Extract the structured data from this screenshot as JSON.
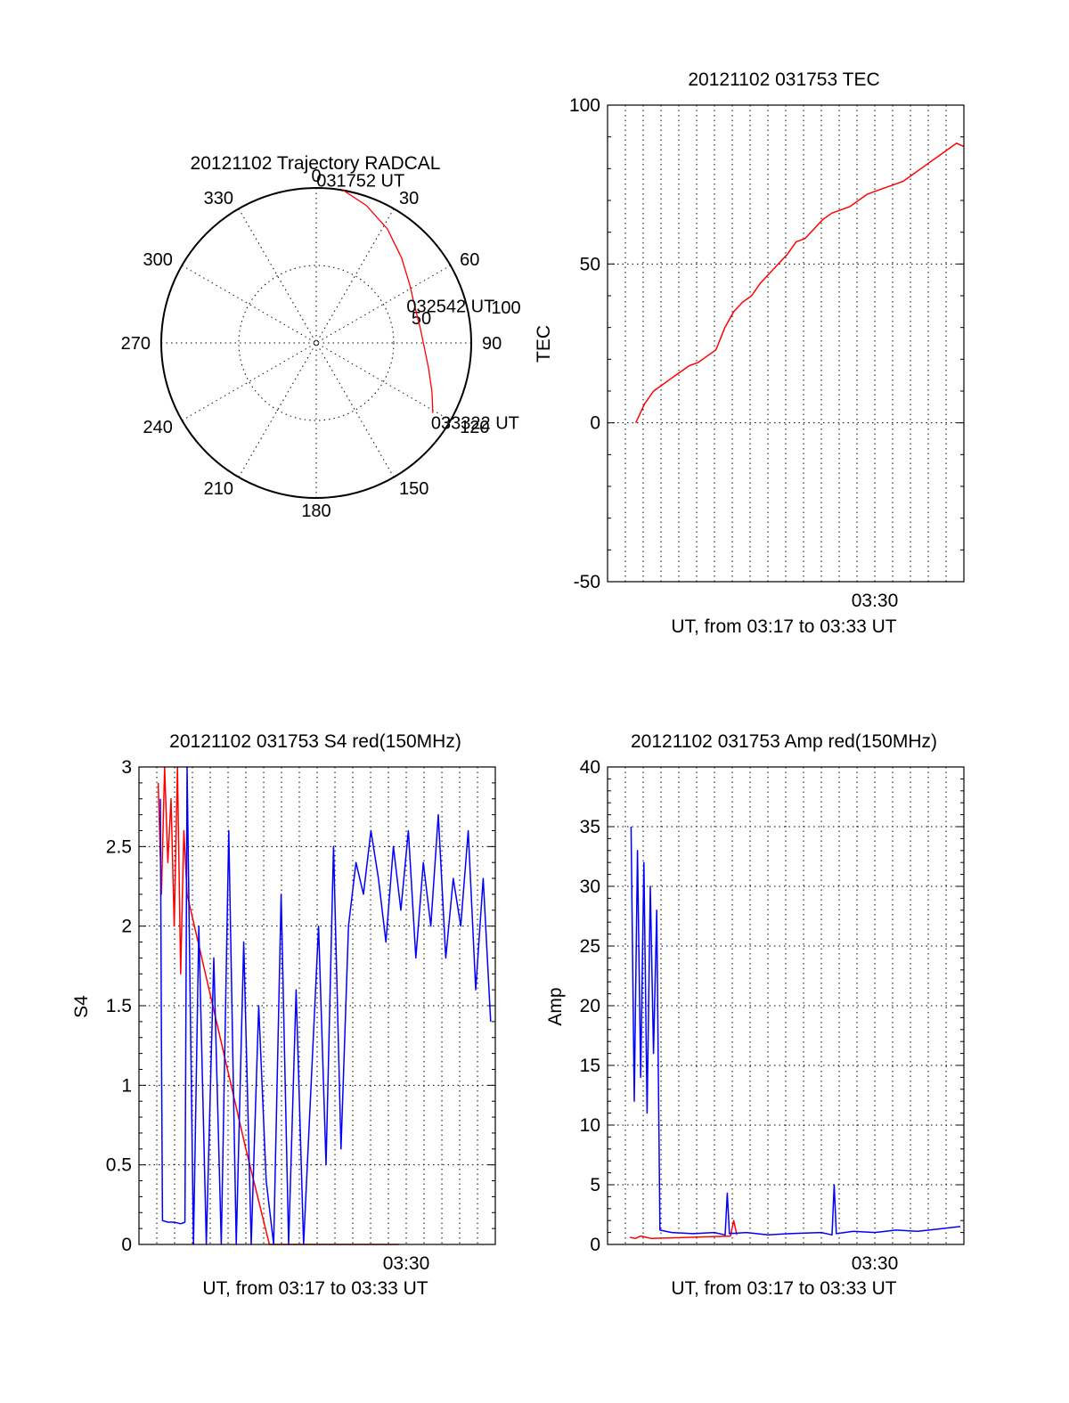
{
  "chart_data": [
    {
      "id": "trajectory",
      "type": "polar",
      "title": "20121102 Trajectory RADCAL",
      "azimuth_labels": [
        "0",
        "30",
        "60",
        "90",
        "120",
        "150",
        "180",
        "210",
        "240",
        "270",
        "300",
        "330"
      ],
      "radius_labels": [
        "50",
        "100"
      ],
      "grid": true,
      "series": [
        {
          "color": "#ff0000",
          "points": [
            {
              "az": 10,
              "zen": 90
            },
            {
              "az": 20,
              "zen": 85
            },
            {
              "az": 32,
              "zen": 78
            },
            {
              "az": 45,
              "zen": 70
            },
            {
              "az": 58,
              "zen": 64
            },
            {
              "az": 70,
              "zen": 61
            },
            {
              "az": 82,
              "zen": 61
            },
            {
              "az": 93,
              "zen": 63
            },
            {
              "az": 103,
              "zen": 67
            },
            {
              "az": 113,
              "zen": 73
            },
            {
              "az": 121,
              "zen": 79
            }
          ]
        }
      ],
      "annotations": [
        {
          "text": "031752 UT",
          "az": 10,
          "zen": 90
        },
        {
          "text": "032542 UT",
          "az": 74,
          "zen": 61
        },
        {
          "text": "033322 UT",
          "az": 121,
          "zen": 79
        }
      ]
    },
    {
      "id": "tec",
      "type": "line",
      "title": "20121102 031753 TEC",
      "xlabel": "UT, from 03:17 to 03:33 UT",
      "ylabel": "TEC",
      "xlim": [
        3.25,
        3.5833
      ],
      "ylim": [
        -50,
        100
      ],
      "yticks": [
        "-50",
        "0",
        "50",
        "100"
      ],
      "xtick_labels": [
        {
          "x": 3.5,
          "label": "03:30"
        }
      ],
      "grid": true,
      "series": [
        {
          "color": "#ff0000",
          "x": [
            3.2764,
            3.2847,
            3.2931,
            3.3014,
            3.3097,
            3.3181,
            3.3264,
            3.3347,
            3.3431,
            3.3514,
            3.3597,
            3.3681,
            3.3764,
            3.3847,
            3.3931,
            3.4014,
            3.4097,
            3.4181,
            3.4264,
            3.4347,
            3.4431,
            3.4514,
            3.4597,
            3.4681,
            3.4764,
            3.4847,
            3.4931,
            3.5014,
            3.5097,
            3.5181,
            3.5264,
            3.5347,
            3.5431,
            3.5514,
            3.5597,
            3.5681,
            3.5764,
            3.5833
          ],
          "y": [
            0,
            6,
            10,
            12,
            14,
            16,
            18,
            19,
            21,
            23,
            30,
            35,
            38,
            40,
            44,
            47,
            50,
            53,
            57,
            58,
            61,
            64,
            66,
            67,
            68,
            70,
            72,
            73,
            74,
            75,
            76,
            78,
            80,
            82,
            84,
            86,
            88,
            87
          ]
        }
      ]
    },
    {
      "id": "s4",
      "type": "line",
      "title": "20121102 031753 S4 red(150MHz)",
      "xlabel": "UT, from 03:17 to 03:33 UT",
      "ylabel": "S4",
      "xlim": [
        3.25,
        3.5833
      ],
      "ylim": [
        0,
        3
      ],
      "yticks": [
        "0",
        "0.5",
        "1",
        "1.5",
        "2",
        "2.5",
        "3"
      ],
      "xtick_labels": [
        {
          "x": 3.5,
          "label": "03:30"
        }
      ],
      "grid": true,
      "series": [
        {
          "color": "#ff0000",
          "x": [
            3.268,
            3.271,
            3.274,
            3.277,
            3.28,
            3.283,
            3.286,
            3.289,
            3.292,
            3.295,
            3.35,
            3.372,
            3.385,
            3.391,
            3.397,
            3.403,
            3.409,
            3.415,
            3.421,
            3.427,
            3.433,
            3.439,
            3.445,
            3.451,
            3.457,
            3.463,
            3.469,
            3.475,
            3.481,
            3.487,
            3.493
          ],
          "y": [
            2.9,
            2.2,
            3.0,
            2.4,
            2.8,
            2.0,
            3.0,
            1.7,
            2.6,
            2.2,
            0.6,
            0.0,
            0.0,
            0.0,
            0.0,
            0.0,
            0.0,
            0.0,
            0.0,
            0.0,
            0.0,
            0.0,
            0.0,
            0.0,
            0.0,
            0.0,
            0.0,
            0.0,
            0.0,
            0.0,
            0.0
          ]
        },
        {
          "color": "#0000ff",
          "x": [
            3.27,
            3.271,
            3.272,
            3.277,
            3.283,
            3.289,
            3.293,
            3.295,
            3.301,
            3.306,
            3.313,
            3.32,
            3.327,
            3.334,
            3.341,
            3.348,
            3.355,
            3.362,
            3.369,
            3.376,
            3.383,
            3.39,
            3.397,
            3.404,
            3.411,
            3.418,
            3.425,
            3.432,
            3.439,
            3.446,
            3.453,
            3.46,
            3.467,
            3.474,
            3.481,
            3.488,
            3.495,
            3.502,
            3.509,
            3.516,
            3.523,
            3.53,
            3.537,
            3.544,
            3.551,
            3.558,
            3.565,
            3.572,
            3.579
          ],
          "y": [
            2.8,
            1.3,
            0.15,
            0.14,
            0.14,
            0.13,
            0.14,
            3.0,
            0.0,
            2.0,
            0.0,
            1.8,
            0.0,
            2.6,
            0.0,
            1.9,
            0.0,
            1.5,
            0.4,
            0.0,
            2.2,
            0.0,
            1.6,
            0.0,
            1.0,
            2.0,
            0.5,
            2.5,
            0.6,
            2.0,
            2.4,
            2.2,
            2.6,
            2.3,
            1.9,
            2.5,
            2.1,
            2.6,
            1.8,
            2.4,
            2.0,
            2.7,
            1.8,
            2.3,
            2.0,
            2.6,
            1.6,
            2.3,
            1.4
          ]
        }
      ]
    },
    {
      "id": "amp",
      "type": "line",
      "title": "20121102 031753 Amp red(150MHz)",
      "xlabel": "UT, from 03:17 to 03:33 UT",
      "ylabel": "Amp",
      "xlim": [
        3.25,
        3.5833
      ],
      "ylim": [
        0,
        40
      ],
      "yticks": [
        "0",
        "5",
        "10",
        "15",
        "20",
        "25",
        "30",
        "35",
        "40"
      ],
      "xtick_labels": [
        {
          "x": 3.5,
          "label": "03:30"
        }
      ],
      "grid": true,
      "series": [
        {
          "color": "#ff0000",
          "x": [
            3.271,
            3.276,
            3.281,
            3.286,
            3.291,
            3.365,
            3.368,
            3.371
          ],
          "y": [
            0.6,
            0.5,
            0.7,
            0.6,
            0.5,
            0.7,
            2.0,
            0.8
          ]
        },
        {
          "color": "#0000ff",
          "x": [
            3.272,
            3.275,
            3.278,
            3.281,
            3.284,
            3.287,
            3.29,
            3.293,
            3.296,
            3.299,
            3.31,
            3.33,
            3.35,
            3.36,
            3.362,
            3.364,
            3.38,
            3.4,
            3.42,
            3.45,
            3.46,
            3.462,
            3.464,
            3.48,
            3.5,
            3.52,
            3.54,
            3.56,
            3.58
          ],
          "y": [
            35,
            12,
            33,
            14,
            32,
            11,
            30,
            16,
            28,
            1.2,
            1.0,
            0.9,
            1.0,
            0.8,
            4.3,
            0.9,
            1.0,
            0.8,
            0.9,
            1.0,
            0.8,
            5.0,
            0.9,
            1.1,
            1.0,
            1.2,
            1.1,
            1.3,
            1.5
          ]
        }
      ]
    }
  ]
}
